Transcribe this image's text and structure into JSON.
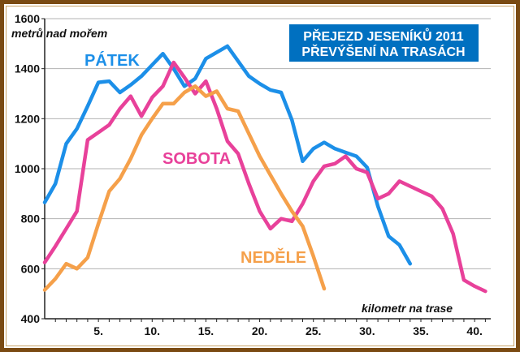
{
  "chart_data": {
    "type": "line",
    "title": "PŘEJEZD JESENÍKŮ 2011",
    "subtitle": "PŘEVÝŠENÍ NA TRASÁCH",
    "ylabel": "metrů nad mořem",
    "xlabel": "kilometr na trase",
    "ylim": [
      400,
      1600
    ],
    "xlim": [
      0,
      41.5
    ],
    "yticks": [
      400,
      600,
      800,
      1000,
      1200,
      1400,
      1600
    ],
    "xticks": [
      5,
      10,
      15,
      20,
      25,
      30,
      35,
      40
    ],
    "xtick_labels": [
      "5.",
      "10.",
      "15.",
      "20.",
      "25.",
      "30.",
      "35.",
      "40."
    ],
    "grid": "horizontal",
    "colors": {
      "title_box": "#0070c0",
      "grid": "#b3b3b3",
      "frame": "#7a4a12"
    },
    "series": [
      {
        "name": "PÁTEK",
        "color": "#1c8fe8",
        "x": [
          0,
          1,
          2,
          3,
          4,
          5,
          6,
          7,
          8,
          9,
          10,
          11,
          12,
          13,
          14,
          15,
          16,
          17,
          18,
          19,
          20,
          21,
          22,
          23,
          24,
          25,
          26,
          27,
          28,
          29,
          30,
          31,
          32,
          33,
          34
        ],
        "y": [
          865,
          940,
          1100,
          1160,
          1250,
          1345,
          1350,
          1305,
          1335,
          1370,
          1415,
          1460,
          1400,
          1330,
          1360,
          1440,
          1465,
          1490,
          1430,
          1370,
          1340,
          1315,
          1305,
          1195,
          1030,
          1080,
          1105,
          1080,
          1065,
          1050,
          1005,
          850,
          730,
          695,
          620
        ]
      },
      {
        "name": "SOBOTA",
        "color": "#e8419a",
        "x": [
          0,
          1,
          2,
          3,
          4,
          5,
          6,
          7,
          8,
          9,
          10,
          11,
          12,
          13,
          14,
          15,
          16,
          17,
          18,
          19,
          20,
          21,
          22,
          23,
          24,
          25,
          26,
          27,
          28,
          29,
          30,
          31,
          32,
          33,
          34,
          35,
          36,
          37,
          38,
          39,
          40,
          41
        ],
        "y": [
          625,
          690,
          760,
          830,
          1115,
          1145,
          1175,
          1240,
          1290,
          1210,
          1285,
          1330,
          1425,
          1365,
          1300,
          1350,
          1240,
          1110,
          1060,
          940,
          830,
          760,
          800,
          790,
          860,
          950,
          1010,
          1020,
          1050,
          1000,
          985,
          880,
          900,
          950,
          930,
          910,
          890,
          840,
          740,
          555,
          530,
          510
        ]
      },
      {
        "name": "NEDĚLE",
        "color": "#f5a04a",
        "x": [
          0,
          1,
          2,
          3,
          4,
          5,
          6,
          7,
          8,
          9,
          10,
          11,
          12,
          13,
          14,
          15,
          16,
          17,
          18,
          19,
          20,
          21,
          22,
          23,
          24,
          25,
          26
        ],
        "y": [
          515,
          560,
          620,
          600,
          645,
          780,
          910,
          960,
          1040,
          1135,
          1200,
          1260,
          1260,
          1305,
          1330,
          1290,
          1310,
          1240,
          1230,
          1140,
          1050,
          975,
          900,
          830,
          770,
          650,
          520
        ]
      }
    ]
  }
}
